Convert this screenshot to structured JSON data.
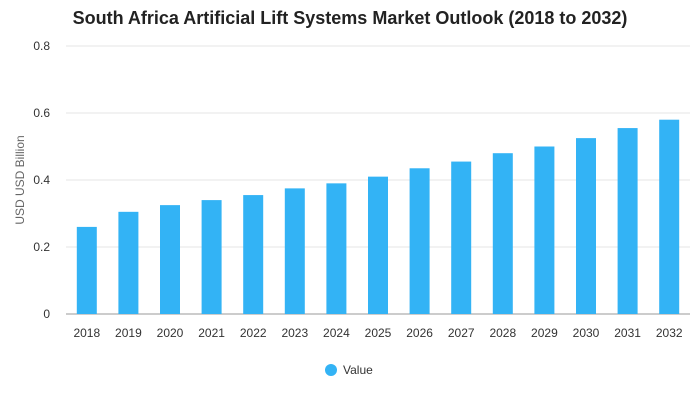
{
  "chart_data": {
    "type": "bar",
    "title": "South Africa Artificial Lift Systems Market Outlook (2018 to 2032)",
    "xlabel": "",
    "ylabel": "USD USD Billion",
    "ylim": [
      0,
      0.8
    ],
    "yticks": [
      "0",
      "0.2",
      "0.4",
      "0.6",
      "0.8"
    ],
    "categories": [
      "2018",
      "2019",
      "2020",
      "2021",
      "2022",
      "2023",
      "2024",
      "2025",
      "2026",
      "2027",
      "2028",
      "2029",
      "2030",
      "2031",
      "2032"
    ],
    "series": [
      {
        "name": "Value",
        "color": "#33b3f5",
        "values": [
          0.26,
          0.305,
          0.325,
          0.34,
          0.355,
          0.375,
          0.39,
          0.41,
          0.435,
          0.455,
          0.48,
          0.5,
          0.525,
          0.555,
          0.58
        ]
      }
    ],
    "grid": true,
    "legend_position": "bottom"
  }
}
